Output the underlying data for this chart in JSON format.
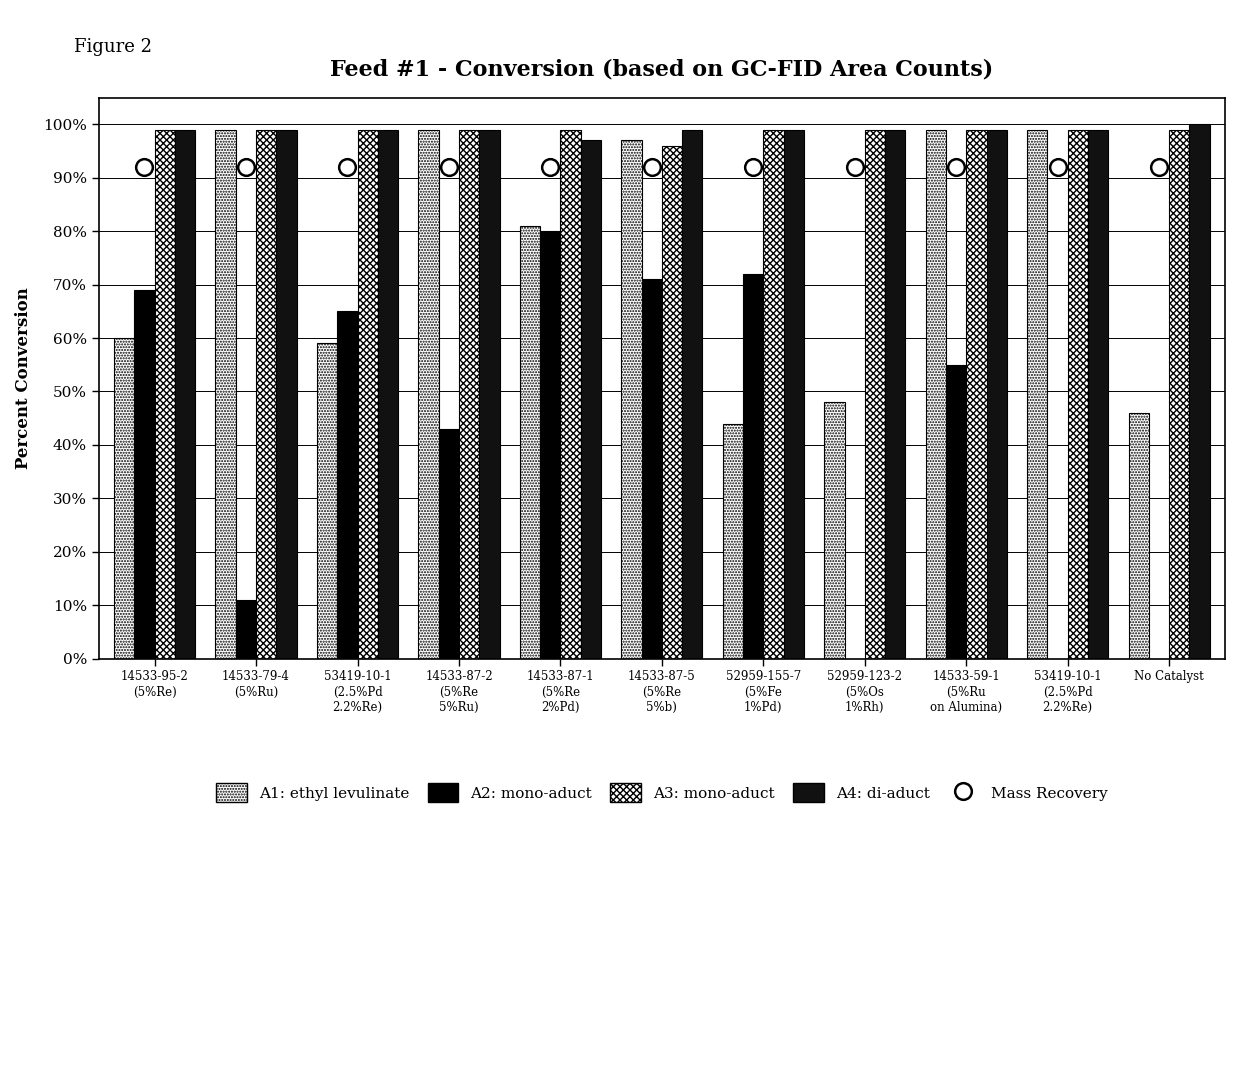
{
  "title": "Feed #1 - Conversion (based on GC-FID Area Counts)",
  "ylabel": "Percent Conversion",
  "figure_label": "Figure 2",
  "categories_line1": [
    "14533-95-2",
    "14533-79-4",
    "53419-10-1",
    "14533-87-2",
    "14533-87-1",
    "14533-87-5",
    "52959-155-7",
    "52959-123-2",
    "14533-59-1",
    "53419-10-1",
    "No Catalyst"
  ],
  "categories_line2": [
    "(5%Re)",
    "(5%Ru)",
    "(2.5%Pd",
    "(5%Re",
    "(5%Re",
    "(5%Re",
    "(5%Fe",
    "(5%Os",
    "(5%Ru",
    "(2.5%Pd",
    ""
  ],
  "categories_line3": [
    "",
    "",
    "2.2%Re)",
    "5%Ru)",
    "2%Pd)",
    "5%b)",
    "1%Pd)",
    "1%Rh)",
    "on Alumina)",
    "2.2%Re)",
    ""
  ],
  "A1_ethyl_levulinate": [
    0.6,
    0.99,
    0.59,
    0.99,
    0.81,
    0.97,
    0.44,
    0.48,
    0.99,
    0.99,
    0.46
  ],
  "A2_mono_aduct": [
    0.69,
    0.11,
    0.65,
    0.43,
    0.8,
    0.71,
    0.72,
    0.0,
    0.55,
    0.0,
    0.0
  ],
  "A3_mono_aduct": [
    0.99,
    0.99,
    0.99,
    0.99,
    0.99,
    0.96,
    0.99,
    0.99,
    0.99,
    0.99,
    0.99
  ],
  "A4_di_aduct": [
    0.99,
    0.99,
    0.99,
    0.99,
    0.97,
    0.99,
    0.99,
    0.99,
    0.99,
    0.99,
    1.0
  ],
  "mass_recovery": [
    0.92,
    0.92,
    0.92,
    0.92,
    0.92,
    0.92,
    0.92,
    0.92,
    0.92,
    0.92,
    0.92
  ],
  "ylim": [
    0,
    1.05
  ],
  "yticks": [
    0,
    0.1,
    0.2,
    0.3,
    0.4,
    0.5,
    0.6,
    0.7,
    0.8,
    0.9,
    1.0
  ],
  "ytick_labels": [
    "0%",
    "10%",
    "20%",
    "30%",
    "40%",
    "50%",
    "60%",
    "70%",
    "80%",
    "90%",
    "100%"
  ],
  "bar_width": 0.2
}
